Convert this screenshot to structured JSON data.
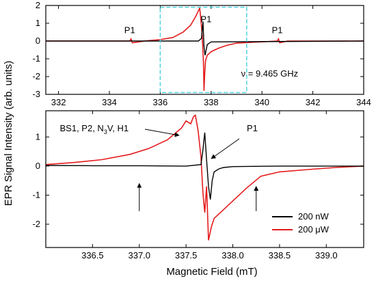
{
  "ylabel": "EPR Signal Intensity (arb. units)",
  "colors": {
    "black_series": "#000000",
    "red_series": "#e41a1c",
    "zoom_box": "#4fd2e0"
  },
  "chart_data": [
    {
      "type": "line",
      "panel": "top",
      "xlim": [
        331.5,
        344
      ],
      "ylim": [
        -3,
        2
      ],
      "xticks": [
        332,
        334,
        336,
        338,
        340,
        342,
        344
      ],
      "yticks": [
        -3,
        -2,
        -1,
        0,
        1,
        2
      ],
      "zoom_box": {
        "x": [
          336,
          339.4
        ],
        "y": [
          -2.9,
          1.9
        ]
      },
      "annotations": [
        {
          "text": "P1",
          "x": 334.8,
          "y": 0.45
        },
        {
          "text": "P1",
          "x": 337.8,
          "y": 1.05
        },
        {
          "text": "P1",
          "x": 340.6,
          "y": 0.45
        },
        {
          "text": "ν = 9.465 GHz",
          "x": 340.3,
          "y": -2.0
        }
      ],
      "series": [
        {
          "color": "#000000",
          "x": [
            331.5,
            337.5,
            337.62,
            337.68,
            337.72,
            337.76,
            337.85,
            338.0,
            344
          ],
          "y": [
            0,
            0,
            0.15,
            1.1,
            -0.3,
            -0.8,
            -0.2,
            -0.05,
            0
          ]
        },
        {
          "color": "#e41a1c",
          "x": [
            331.5,
            334.8,
            334.85,
            334.9,
            335.5,
            336.0,
            336.5,
            336.9,
            337.2,
            337.4,
            337.5,
            337.55,
            337.6,
            337.65,
            337.7,
            337.72,
            337.75,
            337.78,
            337.85,
            338.0,
            338.3,
            338.6,
            339.0,
            340.6,
            340.65,
            340.7,
            341.0,
            344
          ],
          "y": [
            0,
            0,
            0.12,
            -0.1,
            0.02,
            0.08,
            0.2,
            0.5,
            0.9,
            1.4,
            1.7,
            1.85,
            1.2,
            0.3,
            -1.2,
            -2.8,
            -1.8,
            -1.1,
            -0.8,
            -0.6,
            -0.4,
            -0.25,
            -0.12,
            0,
            0.12,
            -0.1,
            0,
            0
          ]
        }
      ]
    },
    {
      "type": "line",
      "panel": "bottom",
      "xlabel": "Magnetic Field (mT)",
      "xlim": [
        336.0,
        339.4
      ],
      "ylim": [
        -2.8,
        1.9
      ],
      "xticks": [
        336.5,
        337.0,
        337.5,
        338.0,
        338.5,
        339.0
      ],
      "xtick_labels": [
        "336.5",
        "337.0",
        "337.5",
        "338.0",
        "338.5",
        "339.0"
      ],
      "yticks": [
        -2,
        -1,
        0,
        1
      ],
      "annotations": [
        {
          "text": "BS1, P2, N",
          "sub": "3",
          "rest": "V, H1",
          "x": 336.15,
          "y": 1.2
        },
        {
          "text": "P1",
          "x": 338.15,
          "y": 1.2
        }
      ],
      "series": [
        {
          "name": "200 nW",
          "color": "#000000",
          "x": [
            336.0,
            336.5,
            337.0,
            337.5,
            337.66,
            337.68,
            337.7,
            337.72,
            337.74,
            337.76,
            337.78,
            337.8,
            337.85,
            337.9,
            338.0,
            338.5,
            339.0,
            339.4
          ],
          "y": [
            0.02,
            0.01,
            0.01,
            0.0,
            0.05,
            0.55,
            1.15,
            0.2,
            -0.7,
            -1.15,
            -0.5,
            -0.2,
            -0.1,
            -0.05,
            -0.02,
            0.0,
            0.0,
            0.0
          ]
        },
        {
          "name": "200 μW",
          "color": "#e41a1c",
          "x": [
            336.0,
            336.3,
            336.6,
            336.9,
            337.1,
            337.3,
            337.45,
            337.5,
            337.55,
            337.58,
            337.6,
            337.63,
            337.66,
            337.68,
            337.7,
            337.72,
            337.74,
            337.77,
            337.8,
            337.9,
            338.0,
            338.15,
            338.3,
            338.5,
            338.8,
            339.1,
            339.4
          ],
          "y": [
            0.05,
            0.12,
            0.22,
            0.4,
            0.6,
            0.9,
            1.3,
            1.55,
            1.45,
            1.7,
            1.75,
            1.2,
            0.3,
            -0.9,
            -1.6,
            -0.7,
            -2.55,
            -2.1,
            -1.8,
            -1.5,
            -1.2,
            -0.75,
            -0.35,
            -0.2,
            -0.12,
            -0.05,
            0.0
          ]
        }
      ],
      "arrows": [
        {
          "x": 337.0,
          "y_from": -1.55,
          "y_to": -0.6
        },
        {
          "x": 338.25,
          "y_from": -1.55,
          "y_to": -0.7
        }
      ],
      "legend": {
        "placement": "bottom-right"
      }
    }
  ]
}
